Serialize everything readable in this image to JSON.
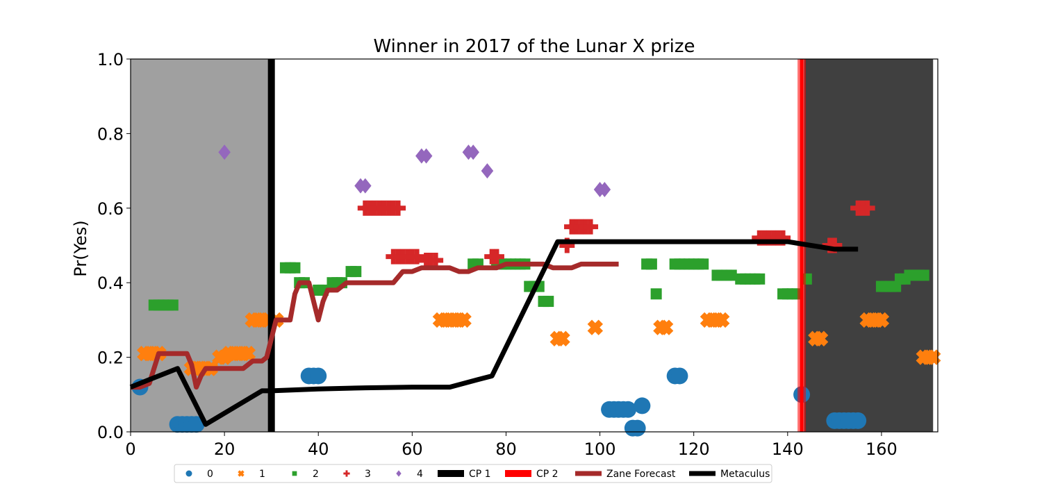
{
  "chart_data": {
    "type": "scatter",
    "title": "Winner in 2017 of the Lunar X prize",
    "xlabel": "",
    "ylabel": "Pr(Yes)",
    "xlim": [
      0,
      172
    ],
    "ylim": [
      0,
      1
    ],
    "x_ticks": [
      "0",
      "20",
      "40",
      "60",
      "80",
      "100",
      "120",
      "140",
      "160"
    ],
    "y_ticks": [
      "0.0",
      "0.2",
      "0.4",
      "0.6",
      "0.8",
      "1.0"
    ],
    "colors": {
      "s0": "#1f77b4",
      "s1": "#ff7f0e",
      "s2": "#2ca02c",
      "s3": "#d62728",
      "s4": "#9467bd",
      "cp1": "#000000",
      "cp2": "#ff0000",
      "zane": "#a52a2a",
      "metaculus": "#000000",
      "shade_left": "#a0a0a0",
      "shade_right": "#404040"
    },
    "shaded_regions": [
      {
        "x0": 0,
        "x1": 29.5,
        "tone": "light"
      },
      {
        "x0": 143.5,
        "x1": 171,
        "tone": "dark"
      }
    ],
    "change_points": [
      {
        "name": "CP 1",
        "x": 30
      },
      {
        "name": "CP 2",
        "x": 143
      }
    ],
    "series": [
      {
        "name": "0",
        "marker": "circle",
        "points": [
          [
            2,
            0.12
          ],
          [
            10,
            0.02
          ],
          [
            11,
            0.02
          ],
          [
            12,
            0.02
          ],
          [
            13,
            0.02
          ],
          [
            14,
            0.02
          ],
          [
            38,
            0.15
          ],
          [
            39,
            0.15
          ],
          [
            40,
            0.15
          ],
          [
            102,
            0.06
          ],
          [
            103,
            0.06
          ],
          [
            104,
            0.06
          ],
          [
            105,
            0.06
          ],
          [
            106,
            0.06
          ],
          [
            107,
            0.01
          ],
          [
            108,
            0.01
          ],
          [
            109,
            0.07
          ],
          [
            116,
            0.15
          ],
          [
            117,
            0.15
          ],
          [
            143,
            0.1
          ],
          [
            150,
            0.03
          ],
          [
            151,
            0.03
          ],
          [
            152,
            0.03
          ],
          [
            153,
            0.03
          ],
          [
            154,
            0.03
          ],
          [
            155,
            0.03
          ]
        ]
      },
      {
        "name": "1",
        "marker": "x",
        "points": [
          [
            3,
            0.21
          ],
          [
            4,
            0.21
          ],
          [
            5,
            0.21
          ],
          [
            6,
            0.21
          ],
          [
            13,
            0.17
          ],
          [
            14,
            0.17
          ],
          [
            15,
            0.17
          ],
          [
            16,
            0.17
          ],
          [
            17,
            0.17
          ],
          [
            19,
            0.2
          ],
          [
            20,
            0.2
          ],
          [
            21,
            0.21
          ],
          [
            22,
            0.21
          ],
          [
            23,
            0.21
          ],
          [
            24,
            0.21
          ],
          [
            25,
            0.21
          ],
          [
            26,
            0.3
          ],
          [
            27,
            0.3
          ],
          [
            28,
            0.3
          ],
          [
            29,
            0.3
          ],
          [
            31,
            0.3
          ],
          [
            66,
            0.3
          ],
          [
            67,
            0.3
          ],
          [
            68,
            0.3
          ],
          [
            69,
            0.3
          ],
          [
            70,
            0.3
          ],
          [
            71,
            0.3
          ],
          [
            91,
            0.25
          ],
          [
            92,
            0.25
          ],
          [
            99,
            0.28
          ],
          [
            113,
            0.28
          ],
          [
            114,
            0.28
          ],
          [
            123,
            0.3
          ],
          [
            124,
            0.3
          ],
          [
            125,
            0.3
          ],
          [
            126,
            0.3
          ],
          [
            146,
            0.25
          ],
          [
            147,
            0.25
          ],
          [
            157,
            0.3
          ],
          [
            158,
            0.3
          ],
          [
            159,
            0.3
          ],
          [
            160,
            0.3
          ],
          [
            169,
            0.2
          ],
          [
            170,
            0.2
          ],
          [
            171,
            0.2
          ]
        ]
      },
      {
        "name": "2",
        "marker": "square",
        "points": [
          [
            5,
            0.34
          ],
          [
            6,
            0.34
          ],
          [
            7,
            0.34
          ],
          [
            8,
            0.34
          ],
          [
            9,
            0.34
          ],
          [
            33,
            0.44
          ],
          [
            34,
            0.44
          ],
          [
            35,
            0.44
          ],
          [
            36,
            0.4
          ],
          [
            37,
            0.4
          ],
          [
            40,
            0.38
          ],
          [
            41,
            0.38
          ],
          [
            43,
            0.4
          ],
          [
            44,
            0.4
          ],
          [
            45,
            0.4
          ],
          [
            47,
            0.43
          ],
          [
            48,
            0.43
          ],
          [
            73,
            0.45
          ],
          [
            74,
            0.45
          ],
          [
            78,
            0.45
          ],
          [
            79,
            0.45
          ],
          [
            80,
            0.45
          ],
          [
            81,
            0.45
          ],
          [
            82,
            0.45
          ],
          [
            83,
            0.45
          ],
          [
            84,
            0.45
          ],
          [
            85,
            0.39
          ],
          [
            86,
            0.39
          ],
          [
            87,
            0.39
          ],
          [
            88,
            0.35
          ],
          [
            89,
            0.35
          ],
          [
            110,
            0.45
          ],
          [
            111,
            0.45
          ],
          [
            112,
            0.37
          ],
          [
            116,
            0.45
          ],
          [
            117,
            0.45
          ],
          [
            118,
            0.45
          ],
          [
            119,
            0.45
          ],
          [
            120,
            0.45
          ],
          [
            121,
            0.45
          ],
          [
            122,
            0.45
          ],
          [
            125,
            0.42
          ],
          [
            126,
            0.42
          ],
          [
            127,
            0.42
          ],
          [
            128,
            0.42
          ],
          [
            130,
            0.41
          ],
          [
            131,
            0.41
          ],
          [
            132,
            0.41
          ],
          [
            133,
            0.41
          ],
          [
            134,
            0.41
          ],
          [
            139,
            0.37
          ],
          [
            140,
            0.37
          ],
          [
            141,
            0.37
          ],
          [
            142,
            0.37
          ],
          [
            144,
            0.41
          ],
          [
            160,
            0.39
          ],
          [
            161,
            0.39
          ],
          [
            162,
            0.39
          ],
          [
            163,
            0.39
          ],
          [
            164,
            0.41
          ],
          [
            165,
            0.41
          ],
          [
            166,
            0.42
          ],
          [
            167,
            0.42
          ],
          [
            168,
            0.42
          ],
          [
            169,
            0.42
          ]
        ]
      },
      {
        "name": "3",
        "marker": "plus",
        "points": [
          [
            50,
            0.6
          ],
          [
            51,
            0.6
          ],
          [
            52,
            0.6
          ],
          [
            53,
            0.6
          ],
          [
            54,
            0.6
          ],
          [
            55,
            0.6
          ],
          [
            56,
            0.6
          ],
          [
            57,
            0.6
          ],
          [
            56,
            0.47
          ],
          [
            57,
            0.47
          ],
          [
            58,
            0.47
          ],
          [
            59,
            0.47
          ],
          [
            60,
            0.47
          ],
          [
            61,
            0.47
          ],
          [
            63,
            0.46
          ],
          [
            64,
            0.46
          ],
          [
            65,
            0.46
          ],
          [
            77,
            0.47
          ],
          [
            78,
            0.47
          ],
          [
            93,
            0.5
          ],
          [
            94,
            0.55
          ],
          [
            95,
            0.55
          ],
          [
            96,
            0.55
          ],
          [
            97,
            0.55
          ],
          [
            98,
            0.55
          ],
          [
            134,
            0.52
          ],
          [
            135,
            0.52
          ],
          [
            136,
            0.52
          ],
          [
            137,
            0.52
          ],
          [
            138,
            0.52
          ],
          [
            139,
            0.52
          ],
          [
            149,
            0.5
          ],
          [
            150,
            0.5
          ],
          [
            155,
            0.6
          ],
          [
            156,
            0.6
          ],
          [
            157,
            0.6
          ]
        ]
      },
      {
        "name": "4",
        "marker": "diamond",
        "points": [
          [
            20,
            0.75
          ],
          [
            49,
            0.66
          ],
          [
            50,
            0.66
          ],
          [
            62,
            0.74
          ],
          [
            63,
            0.74
          ],
          [
            72,
            0.75
          ],
          [
            73,
            0.75
          ],
          [
            76,
            0.7
          ],
          [
            100,
            0.65
          ],
          [
            101,
            0.65
          ]
        ]
      }
    ],
    "lines": [
      {
        "name": "Zane Forecast",
        "points": [
          [
            0,
            0.12
          ],
          [
            2,
            0.12
          ],
          [
            4,
            0.13
          ],
          [
            6,
            0.21
          ],
          [
            8,
            0.21
          ],
          [
            12,
            0.21
          ],
          [
            13,
            0.18
          ],
          [
            14,
            0.12
          ],
          [
            15,
            0.15
          ],
          [
            16,
            0.17
          ],
          [
            20,
            0.17
          ],
          [
            24,
            0.17
          ],
          [
            26,
            0.19
          ],
          [
            28,
            0.19
          ],
          [
            29,
            0.2
          ],
          [
            31,
            0.3
          ],
          [
            34,
            0.3
          ],
          [
            35,
            0.37
          ],
          [
            36,
            0.4
          ],
          [
            38,
            0.4
          ],
          [
            40,
            0.3
          ],
          [
            41,
            0.35
          ],
          [
            42,
            0.38
          ],
          [
            44,
            0.38
          ],
          [
            46,
            0.4
          ],
          [
            52,
            0.4
          ],
          [
            56,
            0.4
          ],
          [
            58,
            0.43
          ],
          [
            60,
            0.43
          ],
          [
            62,
            0.44
          ],
          [
            68,
            0.44
          ],
          [
            70,
            0.43
          ],
          [
            72,
            0.43
          ],
          [
            74,
            0.44
          ],
          [
            78,
            0.44
          ],
          [
            80,
            0.45
          ],
          [
            88,
            0.45
          ],
          [
            90,
            0.44
          ],
          [
            94,
            0.44
          ],
          [
            96,
            0.45
          ],
          [
            104,
            0.45
          ]
        ]
      },
      {
        "name": "Metaculus",
        "points": [
          [
            0,
            0.12
          ],
          [
            4,
            0.14
          ],
          [
            8,
            0.16
          ],
          [
            10,
            0.17
          ],
          [
            16,
            0.02
          ],
          [
            28,
            0.11
          ],
          [
            30,
            0.11
          ],
          [
            40,
            0.115
          ],
          [
            50,
            0.118
          ],
          [
            60,
            0.12
          ],
          [
            68,
            0.12
          ],
          [
            74,
            0.14
          ],
          [
            77,
            0.15
          ],
          [
            91,
            0.51
          ],
          [
            110,
            0.51
          ],
          [
            127,
            0.51
          ],
          [
            135,
            0.51
          ],
          [
            140,
            0.51
          ],
          [
            145,
            0.5
          ],
          [
            150,
            0.49
          ],
          [
            155,
            0.49
          ]
        ]
      }
    ],
    "legend": {
      "placement": "bottom",
      "entries": [
        "0",
        "1",
        "2",
        "3",
        "4",
        "CP 1",
        "CP 2",
        "Zane Forecast",
        "Metaculus"
      ]
    }
  }
}
